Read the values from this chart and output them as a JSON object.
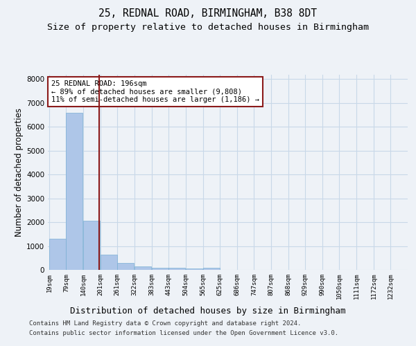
{
  "title1": "25, REDNAL ROAD, BIRMINGHAM, B38 8DT",
  "title2": "Size of property relative to detached houses in Birmingham",
  "xlabel": "Distribution of detached houses by size in Birmingham",
  "ylabel": "Number of detached properties",
  "bar_color": "#aec6e8",
  "bar_edge_color": "#7aafd4",
  "grid_color": "#c8d8e8",
  "vline_color": "#8b1a1a",
  "vline_x": 196,
  "annotation_text": "25 REDNAL ROAD: 196sqm\n← 89% of detached houses are smaller (9,808)\n11% of semi-detached houses are larger (1,186) →",
  "annotation_box_color": "#ffffff",
  "annotation_box_edge_color": "#8b1a1a",
  "categories": [
    "19sqm",
    "79sqm",
    "140sqm",
    "201sqm",
    "261sqm",
    "322sqm",
    "383sqm",
    "443sqm",
    "504sqm",
    "565sqm",
    "625sqm",
    "686sqm",
    "747sqm",
    "807sqm",
    "868sqm",
    "929sqm",
    "990sqm",
    "1050sqm",
    "1111sqm",
    "1172sqm",
    "1232sqm"
  ],
  "bin_edges": [
    19,
    79,
    140,
    201,
    261,
    322,
    383,
    443,
    504,
    565,
    625,
    686,
    747,
    807,
    868,
    929,
    990,
    1050,
    1111,
    1172,
    1232
  ],
  "bin_width": 61,
  "values": [
    1300,
    6600,
    2050,
    650,
    290,
    140,
    100,
    75,
    65,
    100,
    0,
    0,
    0,
    0,
    0,
    0,
    0,
    0,
    0,
    0,
    0
  ],
  "ylim": [
    0,
    8200
  ],
  "background_color": "#eef2f7",
  "footer_line1": "Contains HM Land Registry data © Crown copyright and database right 2024.",
  "footer_line2": "Contains public sector information licensed under the Open Government Licence v3.0.",
  "title_fontsize": 10.5,
  "subtitle_fontsize": 9.5,
  "axis_label_fontsize": 8.5,
  "tick_fontsize": 6.5,
  "annotation_fontsize": 7.5,
  "footer_fontsize": 6.5
}
